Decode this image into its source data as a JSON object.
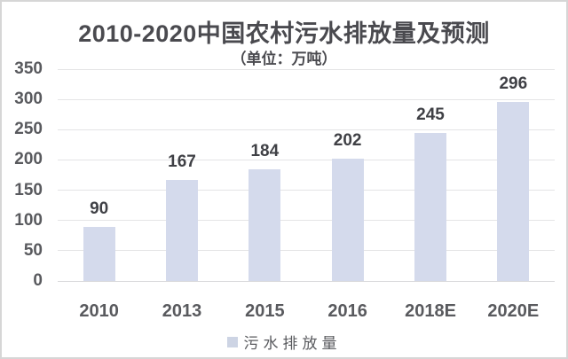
{
  "chart_data": {
    "type": "bar",
    "title": "2010-2020中国农村污水排放量及预测",
    "subtitle": "（单位：万吨）",
    "unit": "万吨",
    "categories": [
      "2010",
      "2013",
      "2015",
      "2016",
      "2018E",
      "2020E"
    ],
    "series": [
      {
        "name": "污水排放量",
        "values": [
          90,
          167,
          184,
          202,
          245,
          296
        ]
      }
    ],
    "ylabel": "",
    "xlabel": "",
    "ylim": [
      0,
      350
    ],
    "yticks": [
      0,
      50,
      100,
      150,
      200,
      250,
      300,
      350
    ],
    "grid": "horizontal",
    "legend_position": "bottom",
    "colors": {
      "bar_fill": "#d4daec",
      "legend_swatch": "#cdd4e4",
      "gridline": "#e4e4e6",
      "baseline": "#d9d9db",
      "title_text": "#4a4a4f",
      "axis_text": "#595a5e",
      "value_label_text": "#3f4045",
      "frame_border": "#d6d6d6",
      "background": "#ffffff"
    }
  }
}
